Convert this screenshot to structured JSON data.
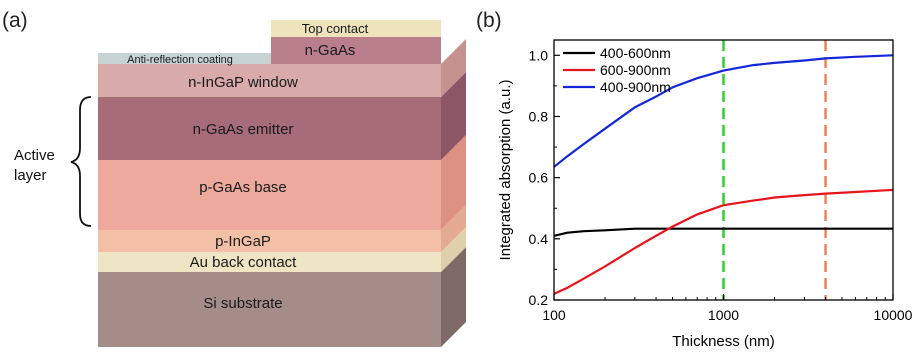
{
  "panel_a": {
    "label": "(a)",
    "layers": {
      "top_contact": "Top contact",
      "cap": "n-GaAs",
      "arc": "Anti-reflection coating",
      "window": "n-InGaP  window",
      "emitter": "n-GaAs  emitter",
      "base": "p-GaAs  base",
      "bsf": "p-InGaP",
      "back_contact": "Au  back contact",
      "substrate": "Si  substrate"
    },
    "active_label_line1": "Active",
    "active_label_line2": "layer"
  },
  "panel_b": {
    "label": "(b)"
  },
  "chart_data": {
    "type": "line",
    "title": "",
    "xlabel": "Thickness (nm)",
    "ylabel": "Integrated absorption (a.u.)",
    "x_scale": "log",
    "xlim": [
      100,
      10000
    ],
    "ylim": [
      0.2,
      1.05
    ],
    "x_ticks": [
      100,
      1000,
      10000
    ],
    "x_tick_labels": [
      "100",
      "1000",
      "10000"
    ],
    "y_ticks": [
      0.2,
      0.4,
      0.6,
      0.8,
      1.0
    ],
    "y_tick_labels": [
      "0.2",
      "0.4",
      "0.6",
      "0.8",
      "1.0"
    ],
    "legend_position": "top-left",
    "grid": false,
    "series": [
      {
        "name": "400-600nm",
        "color": "#000000",
        "x": [
          100,
          120,
          150,
          200,
          300,
          400,
          500,
          700,
          1000,
          2000,
          4000,
          10000
        ],
        "y": [
          0.41,
          0.42,
          0.425,
          0.428,
          0.433,
          0.433,
          0.433,
          0.433,
          0.433,
          0.433,
          0.433,
          0.433
        ]
      },
      {
        "name": "600-900nm",
        "color": "#e8141b",
        "x": [
          100,
          120,
          150,
          200,
          300,
          400,
          500,
          700,
          1000,
          1500,
          2000,
          3000,
          4000,
          6000,
          10000
        ],
        "y": [
          0.22,
          0.24,
          0.27,
          0.31,
          0.37,
          0.41,
          0.44,
          0.48,
          0.51,
          0.525,
          0.535,
          0.543,
          0.548,
          0.553,
          0.56
        ]
      },
      {
        "name": "400-900nm",
        "color": "#1427d8",
        "x": [
          100,
          120,
          150,
          200,
          300,
          400,
          500,
          700,
          1000,
          1500,
          2000,
          3000,
          4000,
          6000,
          10000
        ],
        "y": [
          0.635,
          0.67,
          0.71,
          0.76,
          0.83,
          0.865,
          0.895,
          0.925,
          0.95,
          0.968,
          0.975,
          0.983,
          0.99,
          0.995,
          1.0
        ]
      }
    ],
    "reference_lines": [
      {
        "x": 1000,
        "color": "#2fd12f",
        "style": "dashed"
      },
      {
        "x": 4000,
        "color": "#e8865a",
        "style": "dashed"
      }
    ]
  }
}
